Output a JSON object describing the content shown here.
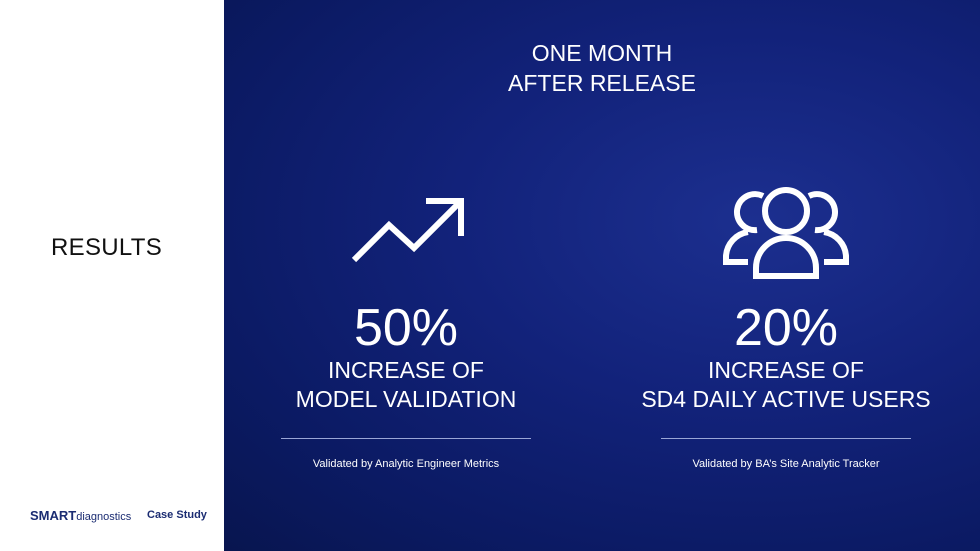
{
  "section": {
    "title": "RESULTS"
  },
  "brand": {
    "strong": "SMART",
    "rest": "diagnostics",
    "tag": "Case Study"
  },
  "headline": {
    "lines": [
      "ONE MONTH",
      "AFTER RELEASE"
    ]
  },
  "stats": [
    {
      "figure": "50%",
      "lines": [
        "INCREASE OF",
        "MODEL VALIDATION"
      ],
      "source": "Validated by Analytic Engineer Metrics"
    },
    {
      "figure": "20%",
      "lines": [
        "INCREASE OF",
        "SD4 DAILY ACTIVE USERS"
      ],
      "source": "Validated by BA’s Site Analytic Tracker"
    }
  ]
}
